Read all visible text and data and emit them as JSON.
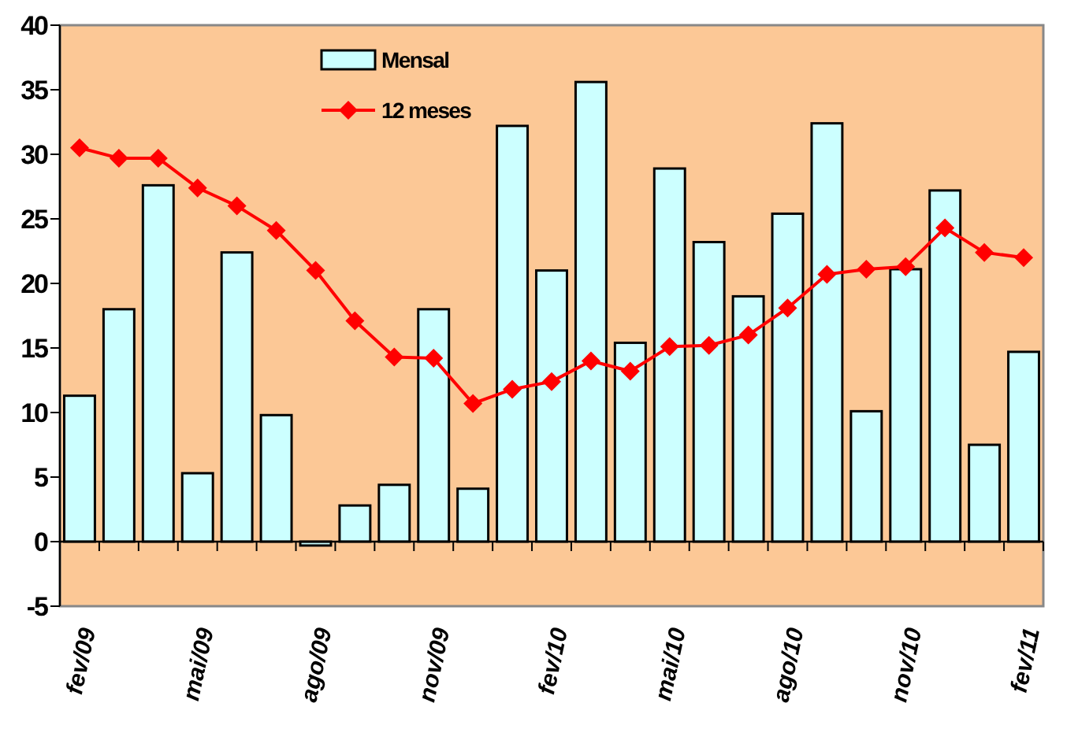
{
  "chart_data": {
    "type": "bar",
    "categories": [
      "fev/09",
      null,
      null,
      "mai/09",
      null,
      null,
      "ago/09",
      null,
      null,
      "nov/09",
      null,
      null,
      "fev/10",
      null,
      null,
      "mai/10",
      null,
      null,
      "ago/10",
      null,
      null,
      "nov/10",
      null,
      null,
      "fev/11"
    ],
    "series": [
      {
        "name": "Mensal",
        "color": "#ccffff",
        "values": [
          11.3,
          18,
          27.6,
          5.3,
          22.4,
          9.8,
          -0.3,
          2.8,
          4.4,
          18,
          4.1,
          32.2,
          21,
          35.6,
          15.4,
          28.9,
          23.2,
          19,
          25.4,
          32.4,
          10.1,
          21.1,
          27.2,
          7.5,
          14.7
        ]
      },
      {
        "name": "12 meses",
        "type": "line",
        "color": "#ff0000",
        "marker": "diamond",
        "values": [
          30.5,
          29.7,
          29.7,
          27.4,
          26,
          24.1,
          21,
          17.1,
          14.3,
          14.2,
          10.7,
          11.8,
          12.4,
          14,
          13.2,
          15.1,
          15.2,
          16,
          18.1,
          20.7,
          21.1,
          21.3,
          24.3,
          22.4,
          22
        ]
      }
    ],
    "ylim": [
      -5,
      40
    ],
    "yticks": [
      {
        "value": -5,
        "label": "-5"
      },
      0,
      5,
      10,
      15,
      20,
      25,
      30,
      35,
      40
    ],
    "legend": "top"
  }
}
